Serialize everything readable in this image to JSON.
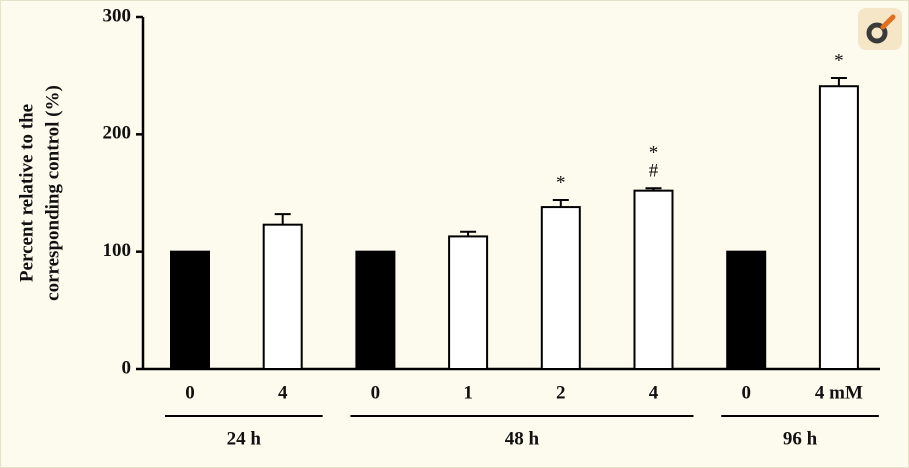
{
  "chart_data": {
    "type": "bar",
    "y_label": [
      "Percent relative to the",
      "corresponding control (%)"
    ],
    "categories": [
      "0",
      "4",
      "0",
      "1",
      "2",
      "4",
      "0",
      "4 mM"
    ],
    "values": [
      100,
      123,
      100,
      113,
      138,
      152,
      100,
      241
    ],
    "errors": [
      0,
      9,
      0,
      4,
      6,
      2,
      0,
      7
    ],
    "colors": [
      "#000000",
      "#ffffff",
      "#000000",
      "#ffffff",
      "#ffffff",
      "#ffffff",
      "#000000",
      "#ffffff"
    ],
    "groups": [
      {
        "label": "24 h",
        "from": 0,
        "to": 1
      },
      {
        "label": "48 h",
        "from": 2,
        "to": 5
      },
      {
        "label": "96 h",
        "from": 6,
        "to": 7
      }
    ],
    "annotations": [
      {
        "category": 4,
        "text": "*"
      },
      {
        "category": 5,
        "text": "*"
      },
      {
        "category": 5,
        "text": "#"
      },
      {
        "category": 7,
        "text": "*"
      }
    ],
    "ylim": [
      0,
      300
    ],
    "yticks": [
      0,
      100,
      200,
      300
    ]
  }
}
